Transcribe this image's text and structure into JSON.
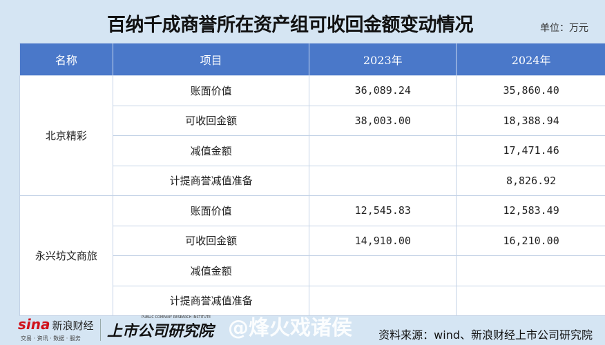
{
  "title": "百纳千成商誉所在资产组可收回金额变动情况",
  "unit": "单位：万元",
  "table": {
    "headers": [
      "名称",
      "项目",
      "2023年",
      "2024年"
    ],
    "groups": [
      {
        "name": "北京精彩",
        "rows": [
          {
            "item": "账面价值",
            "y2023": "36,089.24",
            "y2024": "35,860.40"
          },
          {
            "item": "可收回金额",
            "y2023": "38,003.00",
            "y2024": "18,388.94"
          },
          {
            "item": "减值金额",
            "y2023": "",
            "y2024": "17,471.46"
          },
          {
            "item": "计提商誉减值准备",
            "y2023": "",
            "y2024": "8,826.92"
          }
        ]
      },
      {
        "name": "永兴坊文商旅",
        "rows": [
          {
            "item": "账面价值",
            "y2023": "12,545.83",
            "y2024": "12,583.49"
          },
          {
            "item": "可收回金额",
            "y2023": "14,910.00",
            "y2024": "16,210.00"
          },
          {
            "item": "减值金额",
            "y2023": "",
            "y2024": ""
          },
          {
            "item": "计提商誉减值准备",
            "y2023": "",
            "y2024": ""
          }
        ]
      }
    ]
  },
  "footer": {
    "sina_logo": "sina",
    "sina_name": "新浪财经",
    "sina_tagline": "交易 · 资讯 · 数据 · 服务",
    "institute_logo": "上市公司研究院",
    "institute_en": "PUBLIC COMPANY RESEARCH INSTITUTE",
    "source": "资料来源：wind、新浪财经上市公司研究院",
    "watermark": "@烽火戏诸侯"
  },
  "colors": {
    "header_bg": "#4a78c9",
    "page_bg": "#d5e5f3",
    "sina_red": "#d0121b"
  }
}
